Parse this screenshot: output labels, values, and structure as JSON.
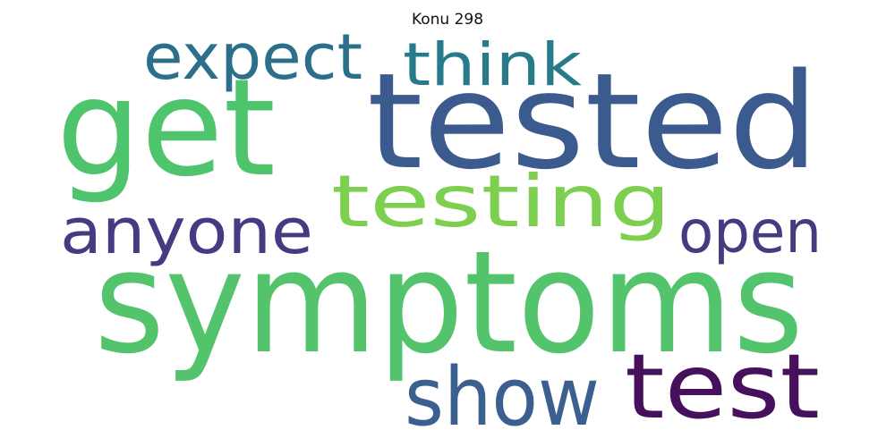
{
  "title": "Konu 298",
  "words": [
    {
      "key": "symptoms",
      "text": "symptoms",
      "color": "#53c46b"
    },
    {
      "key": "tested",
      "text": "tested",
      "color": "#3b5b8e"
    },
    {
      "key": "get",
      "text": "get",
      "color": "#4ec46c"
    },
    {
      "key": "testing",
      "text": "testing",
      "color": "#7dd04f"
    },
    {
      "key": "test",
      "text": "test",
      "color": "#47105d"
    },
    {
      "key": "show",
      "text": "show",
      "color": "#3b5f8e"
    },
    {
      "key": "anyone",
      "text": "anyone",
      "color": "#453b82"
    },
    {
      "key": "open",
      "text": "open",
      "color": "#443c80"
    },
    {
      "key": "expect",
      "text": "expect",
      "color": "#2b6f8a"
    },
    {
      "key": "think",
      "text": "think",
      "color": "#277a8a"
    }
  ]
}
